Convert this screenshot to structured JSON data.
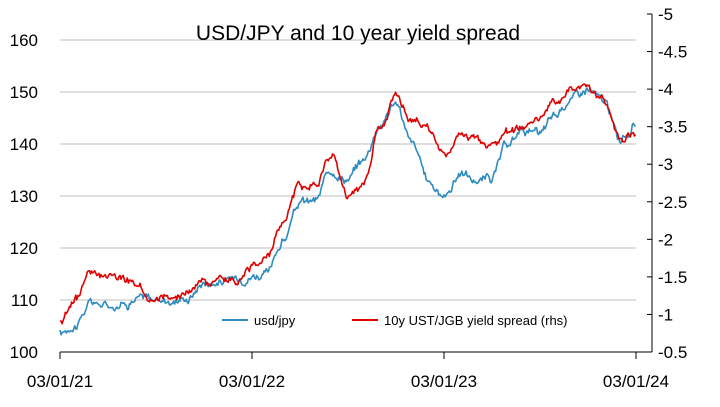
{
  "chart_data": {
    "type": "line",
    "title": "USD/JPY and 10 year yield spread",
    "x_ticks": [
      "03/01/21",
      "03/01/22",
      "03/01/23",
      "03/01/24"
    ],
    "x": [
      "2021-01",
      "2021-02",
      "2021-03",
      "2021-04",
      "2021-05",
      "2021-06",
      "2021-07",
      "2021-08",
      "2021-09",
      "2021-10",
      "2021-11",
      "2021-12",
      "2022-01",
      "2022-02",
      "2022-03",
      "2022-04",
      "2022-05",
      "2022-06",
      "2022-07",
      "2022-08",
      "2022-09",
      "2022-10",
      "2022-11",
      "2022-12",
      "2023-01",
      "2023-02",
      "2023-03",
      "2023-04",
      "2023-05",
      "2023-06",
      "2023-07",
      "2023-08",
      "2023-09",
      "2023-10",
      "2023-11",
      "2023-12",
      "2024-01"
    ],
    "left_axis": {
      "ylim": [
        100,
        165
      ],
      "ticks": [
        "100",
        "110",
        "120",
        "130",
        "140",
        "150",
        "160"
      ]
    },
    "right_axis": {
      "ylim": [
        -0.5,
        -5
      ],
      "ticks": [
        "-0.5",
        "-1",
        "-1.5",
        "-2",
        "-2.5",
        "-3",
        "-3.5",
        "-4",
        "-4.5",
        "-5"
      ]
    },
    "series": [
      {
        "name": "usd/jpy",
        "axis": "left",
        "color": "#2E8BC0",
        "values": [
          103.5,
          105.5,
          109.5,
          109.0,
          109.5,
          110.5,
          110.0,
          110.0,
          110.5,
          113.5,
          113.5,
          114.0,
          115.0,
          115.0,
          121.5,
          128.5,
          129.0,
          135.0,
          133.5,
          137.0,
          144.0,
          148.0,
          140.0,
          133.0,
          130.0,
          134.5,
          133.0,
          133.5,
          139.5,
          143.0,
          141.5,
          145.5,
          149.0,
          150.5,
          148.0,
          141.0,
          143.5
        ]
      },
      {
        "name": "10y UST/JGB yield spread (rhs)",
        "axis": "right",
        "color": "#E00000",
        "values": [
          -0.95,
          -1.2,
          -1.6,
          -1.55,
          -1.5,
          -1.4,
          -1.2,
          -1.25,
          -1.3,
          -1.45,
          -1.45,
          -1.4,
          -1.65,
          -1.8,
          -2.2,
          -2.7,
          -2.75,
          -3.1,
          -2.55,
          -2.75,
          -3.5,
          -3.9,
          -3.6,
          -3.45,
          -3.1,
          -3.4,
          -3.3,
          -3.3,
          -3.4,
          -3.5,
          -3.55,
          -3.85,
          -4.0,
          -4.0,
          -3.85,
          -3.35,
          -3.4
        ]
      }
    ],
    "legend_position": "bottom",
    "grid": "horizontal"
  }
}
